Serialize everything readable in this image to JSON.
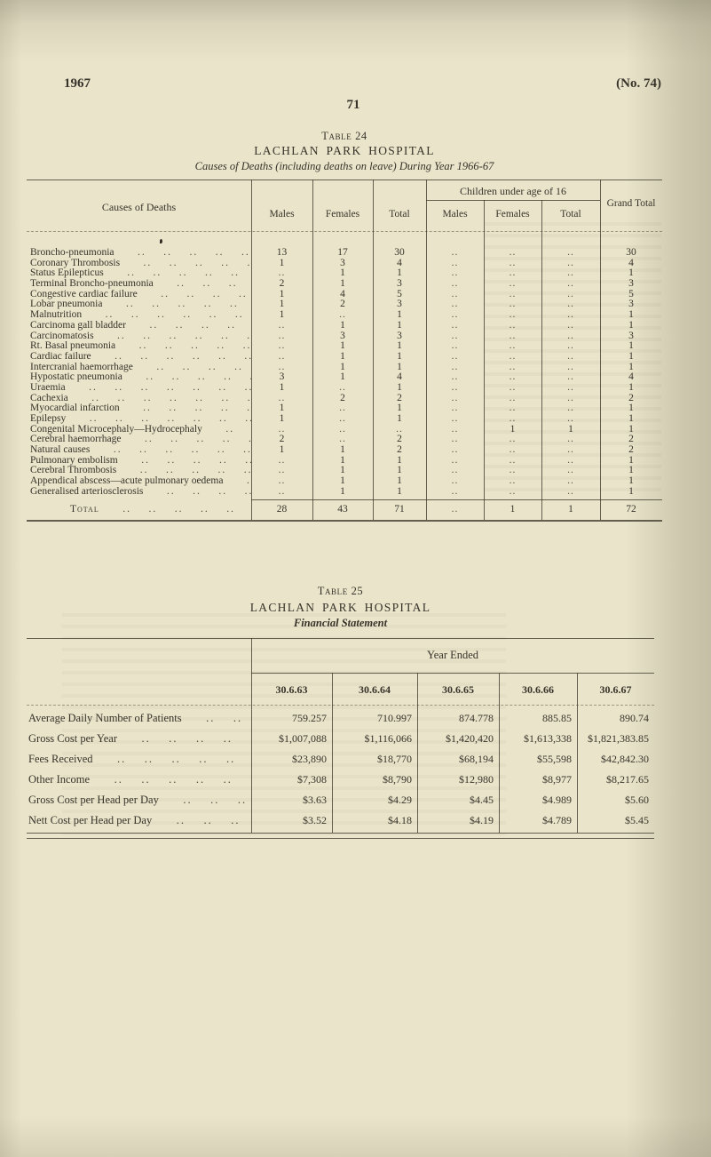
{
  "theme": {
    "paper": "#e9e4ca",
    "ink": "#37332a",
    "rule": "#3e392c"
  },
  "header": {
    "year": "1967",
    "issue_number": "(No. 74)",
    "page_number": "71"
  },
  "deaths_table": {
    "caption": "Table 24",
    "hospital": "LACHLAN PARK HOSPITAL",
    "subtitle": "Causes of Deaths (including deaths on leave) During Year 1966-67",
    "columns": {
      "causes": "Causes of Deaths",
      "males": "Males",
      "females": "Females",
      "total": "Total",
      "children_group": "Children under age of 16",
      "child_males": "Males",
      "child_females": "Females",
      "child_total": "Total",
      "grand_total": "Grand Total"
    },
    "rows": [
      {
        "cause": "Broncho-pneumonia",
        "values": [
          "13",
          "17",
          "30",
          "..",
          "..",
          "..",
          "30"
        ]
      },
      {
        "cause": "Coronary Thrombosis",
        "values": [
          "1",
          "3",
          "4",
          "..",
          "..",
          "..",
          "4"
        ]
      },
      {
        "cause": "Status Epilepticus",
        "values": [
          "..",
          "1",
          "1",
          "..",
          "..",
          "..",
          "1"
        ]
      },
      {
        "cause": "Terminal Broncho-pneumonia",
        "values": [
          "2",
          "1",
          "3",
          "..",
          "..",
          "..",
          "3"
        ]
      },
      {
        "cause": "Congestive cardiac failure",
        "values": [
          "1",
          "4",
          "5",
          "..",
          "..",
          "..",
          "5"
        ]
      },
      {
        "cause": "Lobar pneumonia",
        "values": [
          "1",
          "2",
          "3",
          "..",
          "..",
          "..",
          "3"
        ]
      },
      {
        "cause": "Malnutrition",
        "values": [
          "1",
          "..",
          "1",
          "..",
          "..",
          "..",
          "1"
        ]
      },
      {
        "cause": "Carcinoma gall bladder",
        "values": [
          "..",
          "1",
          "1",
          "..",
          "..",
          "..",
          "1"
        ]
      },
      {
        "cause": "Carcinomatosis",
        "values": [
          "..",
          "3",
          "3",
          "..",
          "..",
          "..",
          "3"
        ]
      },
      {
        "cause": "Rt. Basal pneumonia",
        "values": [
          "..",
          "1",
          "1",
          "..",
          "..",
          "..",
          "1"
        ]
      },
      {
        "cause": "Cardiac failure",
        "values": [
          "..",
          "1",
          "1",
          "..",
          "..",
          "..",
          "1"
        ]
      },
      {
        "cause": "Intercranial haemorrhage",
        "values": [
          "..",
          "1",
          "1",
          "..",
          "..",
          "..",
          "1"
        ]
      },
      {
        "cause": "Hypostatic pneumonia",
        "values": [
          "3",
          "1",
          "4",
          "..",
          "..",
          "..",
          "4"
        ]
      },
      {
        "cause": "Uraemia",
        "values": [
          "1",
          "..",
          "1",
          "..",
          "..",
          "..",
          "1"
        ]
      },
      {
        "cause": "Cachexia",
        "values": [
          "..",
          "2",
          "2",
          "..",
          "..",
          "..",
          "2"
        ]
      },
      {
        "cause": "Myocardial infarction",
        "values": [
          "1",
          "..",
          "1",
          "..",
          "..",
          "..",
          "1"
        ]
      },
      {
        "cause": "Epilepsy",
        "values": [
          "1",
          "..",
          "1",
          "..",
          "..",
          "..",
          "1"
        ]
      },
      {
        "cause": "Congenital Microcephaly—Hydrocephaly",
        "values": [
          "..",
          "..",
          "..",
          "..",
          "1",
          "1",
          "1"
        ]
      },
      {
        "cause": "Cerebral haemorrhage",
        "values": [
          "2",
          "..",
          "2",
          "..",
          "..",
          "..",
          "2"
        ]
      },
      {
        "cause": "Natural causes",
        "values": [
          "1",
          "1",
          "2",
          "..",
          "..",
          "..",
          "2"
        ]
      },
      {
        "cause": "Pulmonary embolism",
        "values": [
          "..",
          "1",
          "1",
          "..",
          "..",
          "..",
          "1"
        ]
      },
      {
        "cause": "Cerebral Thrombosis",
        "values": [
          "..",
          "1",
          "1",
          "..",
          "..",
          "..",
          "1"
        ]
      },
      {
        "cause": "Appendical abscess—acute pulmonary oedema",
        "values": [
          "..",
          "1",
          "1",
          "..",
          "..",
          "..",
          "1"
        ]
      },
      {
        "cause": "Generalised arteriosclerosis",
        "values": [
          "..",
          "1",
          "1",
          "..",
          "..",
          "..",
          "1"
        ]
      }
    ],
    "total_row": {
      "label": "Total",
      "values": [
        "28",
        "43",
        "71",
        "..",
        "1",
        "1",
        "72"
      ]
    }
  },
  "financial_table": {
    "caption": "Table 25",
    "hospital": "LACHLAN PARK HOSPITAL",
    "subtitle": "Financial Statement",
    "group_header": "Year Ended",
    "year_columns": [
      "30.6.63",
      "30.6.64",
      "30.6.65",
      "30.6.66",
      "30.6.67"
    ],
    "rows": [
      {
        "label": "Average Daily Number of Patients",
        "values": [
          "759.257",
          "710.997",
          "874.778",
          "885.85",
          "890.74"
        ]
      },
      {
        "label": "Gross Cost per Year",
        "values": [
          "$1,007,088",
          "$1,116,066",
          "$1,420,420",
          "$1,613,338",
          "$1,821,383.85"
        ]
      },
      {
        "label": "Fees Received",
        "values": [
          "$23,890",
          "$18,770",
          "$68,194",
          "$55,598",
          "$42,842.30"
        ]
      },
      {
        "label": "Other Income",
        "values": [
          "$7,308",
          "$8,790",
          "$12,980",
          "$8,977",
          "$8,217.65"
        ]
      },
      {
        "label": "Gross Cost per Head per Day",
        "values": [
          "$3.63",
          "$4.29",
          "$4.45",
          "$4.989",
          "$5.60"
        ]
      },
      {
        "label": "Nett Cost per Head per Day",
        "values": [
          "$3.52",
          "$4.18",
          "$4.19",
          "$4.789",
          "$5.45"
        ]
      }
    ]
  }
}
